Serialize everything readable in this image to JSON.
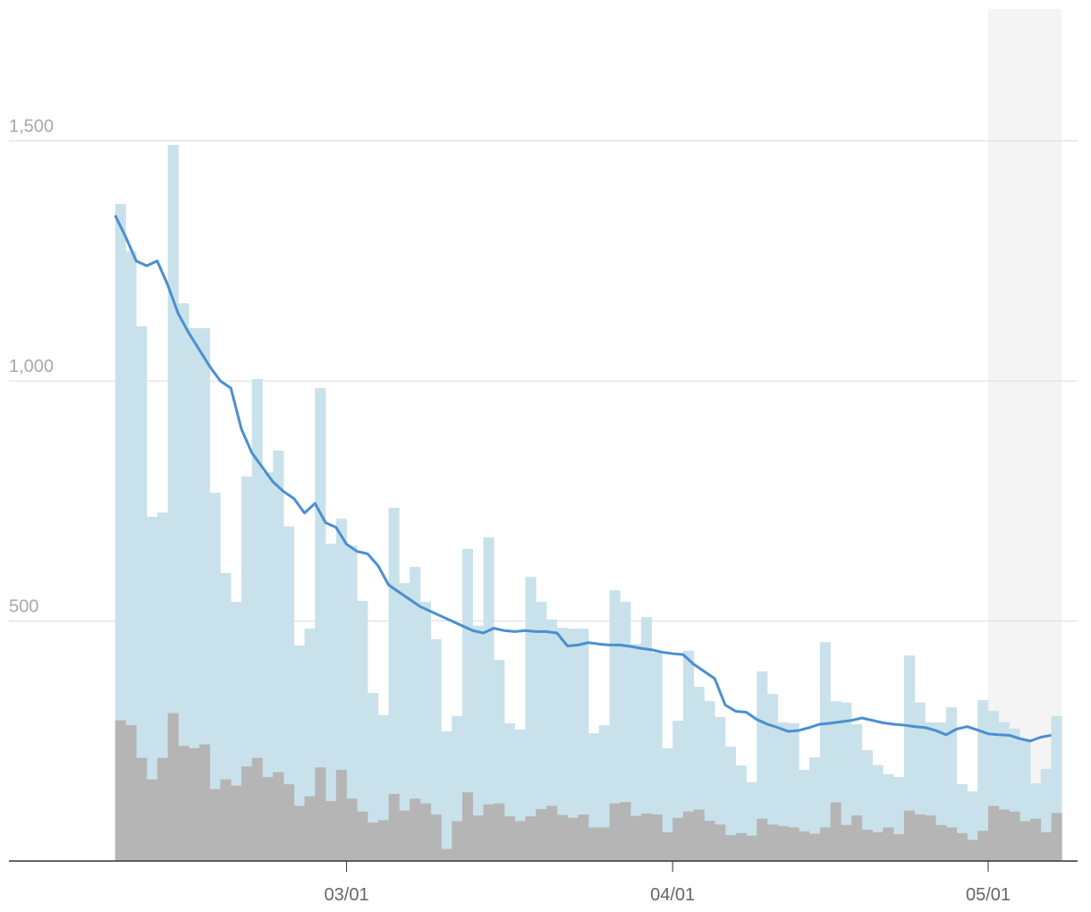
{
  "chart_data": {
    "type": "bar",
    "x": [
      0,
      1,
      2,
      3,
      4,
      5,
      6,
      7,
      8,
      9,
      10,
      11,
      12,
      13,
      14,
      15,
      16,
      17,
      18,
      19,
      20,
      21,
      22,
      23,
      24,
      25,
      26,
      27,
      28,
      29,
      30,
      31,
      32,
      33,
      34,
      35,
      36,
      37,
      38,
      39,
      40,
      41,
      42,
      43,
      44,
      45,
      46,
      47,
      48,
      49,
      50,
      51,
      52,
      53,
      54,
      55,
      56,
      57,
      58,
      59,
      60,
      61,
      62,
      63,
      64,
      65,
      66,
      67,
      68,
      69,
      70,
      71,
      72,
      73,
      74,
      75,
      76,
      77,
      78,
      79,
      80,
      81,
      82,
      83,
      84,
      85,
      86,
      87,
      88,
      89
    ],
    "series": [
      {
        "type": "bar",
        "color": "#c9e1ea",
        "values": [
          1369,
          1270,
          1114,
          717,
          726,
          1492,
          1162,
          1110,
          1110,
          767,
          600,
          540,
          801,
          1004,
          810,
          855,
          697,
          449,
          484,
          985,
          661,
          713,
          657,
          542,
          350,
          304,
          736,
          579,
          613,
          540,
          462,
          270,
          302,
          650,
          490,
          674,
          419,
          287,
          274,
          592,
          540,
          503,
          486,
          484,
          484,
          266,
          283,
          564,
          540,
          452,
          508,
          434,
          235,
          292,
          438,
          363,
          333,
          300,
          238,
          199,
          164,
          395,
          348,
          289,
          287,
          190,
          216,
          456,
          333,
          330,
          285,
          231,
          200,
          181,
          175,
          428,
          330,
          289,
          289,
          320,
          160,
          145,
          335,
          313,
          289,
          276,
          251,
          162,
          192,
          302
        ]
      },
      {
        "type": "bar",
        "color": "#b5b5b5",
        "values": [
          293,
          283,
          215,
          170,
          215,
          308,
          240,
          235,
          243,
          150,
          170,
          157,
          197,
          215,
          175,
          185,
          160,
          115,
          135,
          195,
          125,
          190,
          130,
          103,
          80,
          85,
          140,
          105,
          130,
          120,
          97,
          25,
          83,
          143,
          95,
          118,
          120,
          93,
          83,
          93,
          108,
          115,
          96,
          90,
          97,
          70,
          70,
          120,
          123,
          94,
          99,
          97,
          60,
          90,
          103,
          107,
          84,
          76,
          54,
          58,
          53,
          88,
          76,
          73,
          70,
          62,
          57,
          70,
          122,
          75,
          95,
          65,
          60,
          70,
          56,
          105,
          97,
          95,
          75,
          70,
          58,
          44,
          63,
          115,
          107,
          103,
          83,
          88,
          60,
          100
        ]
      },
      {
        "type": "line",
        "color": "#4a8fd0",
        "values": [
          1345,
          1300,
          1250,
          1240,
          1250,
          1200,
          1140,
          1100,
          1065,
          1030,
          1000,
          985,
          900,
          850,
          820,
          790,
          770,
          755,
          725,
          745,
          705,
          695,
          660,
          645,
          640,
          615,
          575,
          560,
          545,
          530,
          520,
          510,
          500,
          490,
          480,
          475,
          485,
          480,
          478,
          480,
          478,
          478,
          475,
          448,
          450,
          455,
          452,
          450,
          450,
          447,
          443,
          440,
          435,
          432,
          430,
          410,
          395,
          380,
          325,
          312,
          310,
          295,
          285,
          278,
          270,
          272,
          278,
          285,
          287,
          290,
          293,
          298,
          293,
          288,
          285,
          283,
          280,
          278,
          272,
          263,
          275,
          280,
          273,
          265,
          263,
          262,
          255,
          250,
          258,
          262
        ]
      }
    ],
    "xlim": [
      -10.1,
      91.5
    ],
    "xticks": [
      {
        "value": 22,
        "label": "03/01"
      },
      {
        "value": 53,
        "label": "04/01"
      },
      {
        "value": 83,
        "label": "05/01"
      }
    ],
    "ylim": [
      0,
      1775
    ],
    "yticks": [
      500,
      {
        "value": 1000,
        "label": "1,000"
      },
      {
        "value": 1500,
        "label": "1,500"
      }
    ],
    "grid": true,
    "highlight_range": [
      83,
      90
    ],
    "highlight_color": "#f4f4f4"
  }
}
